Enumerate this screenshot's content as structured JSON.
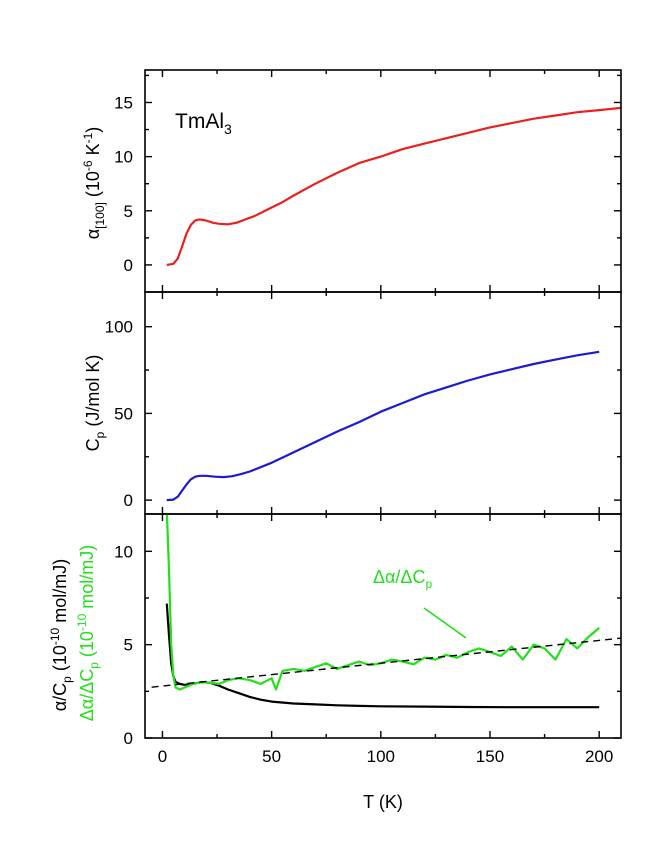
{
  "chart_data": [
    {
      "type": "line",
      "panel": "top",
      "annotation": {
        "main": "TmAl",
        "sub": "3"
      },
      "ylabel": {
        "base": "α",
        "sub": "[100]",
        "rest": " (10",
        "sup": "-6",
        "rest2": " K",
        "sup2": "-1",
        "close": ")"
      },
      "ylim": [
        -2.5,
        18
      ],
      "yticks": [
        0,
        5,
        10,
        15
      ],
      "xlim": [
        -8,
        210
      ],
      "series": [
        {
          "color": "#e8211f",
          "x": [
            2,
            5,
            7,
            9,
            11,
            13,
            15,
            17,
            20,
            23,
            26,
            30,
            34,
            38,
            42,
            46,
            50,
            55,
            60,
            70,
            80,
            90,
            100,
            110,
            120,
            130,
            140,
            150,
            160,
            170,
            180,
            190,
            200,
            210
          ],
          "y": [
            0,
            0.1,
            0.6,
            1.7,
            2.9,
            3.7,
            4.1,
            4.2,
            4.1,
            3.9,
            3.8,
            3.75,
            3.9,
            4.2,
            4.5,
            4.9,
            5.3,
            5.8,
            6.4,
            7.5,
            8.5,
            9.4,
            10.0,
            10.7,
            11.2,
            11.7,
            12.2,
            12.7,
            13.1,
            13.5,
            13.8,
            14.1,
            14.3,
            14.5
          ]
        }
      ]
    },
    {
      "type": "line",
      "panel": "middle",
      "ylabel": {
        "base": "C",
        "sub": "p",
        "rest": " (J/mol K)"
      },
      "ylim": [
        -8,
        120
      ],
      "yticks": [
        0,
        50,
        100
      ],
      "xlim": [
        -8,
        210
      ],
      "series": [
        {
          "color": "#1c1bd0",
          "x": [
            2,
            5,
            7,
            9,
            11,
            13,
            15,
            17,
            20,
            24,
            28,
            32,
            36,
            40,
            50,
            60,
            70,
            80,
            90,
            100,
            110,
            120,
            130,
            140,
            150,
            160,
            170,
            180,
            190,
            200
          ],
          "y": [
            0,
            0.3,
            2,
            5.5,
            9,
            12,
            13.5,
            14,
            14,
            13.5,
            13.3,
            13.8,
            15,
            16.5,
            21.5,
            27.5,
            33.5,
            39.5,
            45,
            51,
            56,
            61,
            65,
            69,
            72.5,
            75.5,
            78.5,
            81,
            83.5,
            85.5
          ]
        }
      ]
    },
    {
      "type": "line",
      "panel": "bottom",
      "ylabel_black": {
        "base": "α/C",
        "sub": "p",
        "rest": " (10",
        "sup": "-10",
        "rest2": " mol/mJ)"
      },
      "ylabel_green": {
        "base": "Δα/ΔC",
        "sub": "p",
        "rest": " (10",
        "sup": "-10",
        "rest2": " mol/mJ)"
      },
      "annotation": {
        "main": "Δα/ΔC",
        "sub": "p"
      },
      "xlabel": "T (K)",
      "ylim": [
        0,
        12
      ],
      "yticks": [
        0,
        5,
        10
      ],
      "xlim": [
        -8,
        210
      ],
      "xticks": [
        0,
        50,
        100,
        150,
        200
      ],
      "series": [
        {
          "color": "#000000",
          "x": [
            2,
            3,
            4,
            5,
            6,
            8,
            10,
            14,
            18,
            22,
            26,
            30,
            35,
            40,
            45,
            50,
            60,
            70,
            80,
            90,
            100,
            120,
            140,
            160,
            180,
            200
          ],
          "y": [
            7.2,
            5.5,
            4.0,
            3.3,
            3.0,
            2.9,
            2.85,
            2.9,
            3.0,
            2.95,
            2.8,
            2.6,
            2.4,
            2.2,
            2.05,
            1.95,
            1.85,
            1.8,
            1.75,
            1.72,
            1.7,
            1.68,
            1.66,
            1.65,
            1.65,
            1.65
          ]
        },
        {
          "color": "#22e01a",
          "x": [
            2,
            3,
            4,
            5,
            6,
            8,
            10,
            14,
            18,
            22,
            26,
            30,
            35,
            40,
            45,
            50,
            52,
            55,
            60,
            65,
            70,
            75,
            80,
            85,
            90,
            95,
            100,
            105,
            110,
            115,
            120,
            125,
            130,
            135,
            140,
            145,
            150,
            155,
            160,
            165,
            170,
            175,
            180,
            185,
            190,
            195,
            200
          ],
          "y": [
            12.2,
            9,
            5,
            3.3,
            2.7,
            2.6,
            2.7,
            2.9,
            3.0,
            2.95,
            2.9,
            3.1,
            3.2,
            3.1,
            2.9,
            3.2,
            2.6,
            3.6,
            3.7,
            3.6,
            3.8,
            4.0,
            3.7,
            3.9,
            4.1,
            3.9,
            4.0,
            4.2,
            4.1,
            3.95,
            4.3,
            4.2,
            4.45,
            4.3,
            4.6,
            4.8,
            4.6,
            4.4,
            4.9,
            4.2,
            5.0,
            4.8,
            4.2,
            5.3,
            4.8,
            5.4,
            5.9
          ]
        },
        {
          "color": "#000000",
          "dashed": true,
          "x": [
            -5,
            210
          ],
          "y": [
            2.72,
            5.35
          ]
        }
      ]
    }
  ]
}
